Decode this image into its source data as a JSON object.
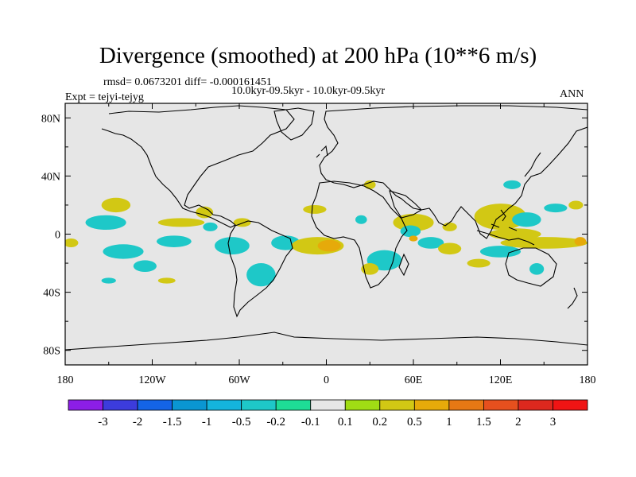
{
  "chart_data": {
    "type": "heatmap",
    "title": "Divergence (smoothed) at 200 hPa (10**6 m/s)",
    "stats": "rmsd= 0.0673201 diff= -0.000161451",
    "period": "10.0kyr-09.5kyr - 10.0kyr-09.5kyr",
    "experiment": "Expt = tejyi-tejyg",
    "season": "ANN",
    "x_ticks": [
      "180",
      "120W",
      "60W",
      "0",
      "60E",
      "120E",
      "180"
    ],
    "y_ticks": [
      "80N",
      "40N",
      "0",
      "40S",
      "80S"
    ],
    "xlim": [
      -180,
      180
    ],
    "ylim": [
      -90,
      90
    ],
    "colorbar": {
      "labels": [
        "-3",
        "-2",
        "-1.5",
        "-1",
        "-0.5",
        "-0.2",
        "-0.1",
        "0.1",
        "0.2",
        "0.5",
        "1",
        "1.5",
        "2",
        "3"
      ],
      "colors": [
        "#8c1ee6",
        "#3c3cdc",
        "#1464e6",
        "#0a96d2",
        "#14b4dc",
        "#1ec8c8",
        "#1edc96",
        "#e6e6e6",
        "#a0dc14",
        "#d2c814",
        "#e6aa0a",
        "#e67814",
        "#e6501e",
        "#dc281e",
        "#f01414"
      ]
    },
    "regions": [
      {
        "lon": -145,
        "lat": 20,
        "rx": 10,
        "ry": 5,
        "level": "0.2"
      },
      {
        "lon": -152,
        "lat": 8,
        "rx": 14,
        "ry": 5,
        "level": "-0.2"
      },
      {
        "lon": -100,
        "lat": 8,
        "rx": 16,
        "ry": 3,
        "level": "0.2"
      },
      {
        "lon": -176,
        "lat": -6,
        "rx": 5,
        "ry": 3,
        "level": "0.2"
      },
      {
        "lon": -140,
        "lat": -12,
        "rx": 14,
        "ry": 5,
        "level": "-0.2"
      },
      {
        "lon": -105,
        "lat": -5,
        "rx": 12,
        "ry": 4,
        "level": "-0.2"
      },
      {
        "lon": -125,
        "lat": -22,
        "rx": 8,
        "ry": 4,
        "level": "-0.2"
      },
      {
        "lon": -150,
        "lat": -32,
        "rx": 5,
        "ry": 2,
        "level": "-0.2"
      },
      {
        "lon": -110,
        "lat": -32,
        "rx": 6,
        "ry": 2,
        "level": "0.2"
      },
      {
        "lon": -84,
        "lat": 15,
        "rx": 6,
        "ry": 4,
        "level": "0.2"
      },
      {
        "lon": -80,
        "lat": 5,
        "rx": 5,
        "ry": 3,
        "level": "-0.2"
      },
      {
        "lon": -65,
        "lat": -8,
        "rx": 12,
        "ry": 6,
        "level": "-0.2"
      },
      {
        "lon": -58,
        "lat": 8,
        "rx": 6,
        "ry": 3,
        "level": "0.2"
      },
      {
        "lon": -45,
        "lat": -28,
        "rx": 10,
        "ry": 8,
        "level": "-0.2"
      },
      {
        "lon": -28,
        "lat": -6,
        "rx": 10,
        "ry": 5,
        "level": "-0.2"
      },
      {
        "lon": -6,
        "lat": -8,
        "rx": 18,
        "ry": 6,
        "level": "0.2"
      },
      {
        "lon": 2,
        "lat": -8,
        "rx": 8,
        "ry": 4,
        "level": "0.5"
      },
      {
        "lon": -8,
        "lat": 17,
        "rx": 8,
        "ry": 3,
        "level": "0.2"
      },
      {
        "lon": 30,
        "lat": 34,
        "rx": 4,
        "ry": 3,
        "level": "0.2"
      },
      {
        "lon": 24,
        "lat": 10,
        "rx": 4,
        "ry": 3,
        "level": "-0.2"
      },
      {
        "lon": 40,
        "lat": -18,
        "rx": 12,
        "ry": 7,
        "level": "-0.2"
      },
      {
        "lon": 30,
        "lat": -24,
        "rx": 6,
        "ry": 4,
        "level": "0.2"
      },
      {
        "lon": 60,
        "lat": 8,
        "rx": 14,
        "ry": 6,
        "level": "0.2"
      },
      {
        "lon": 58,
        "lat": 2,
        "rx": 7,
        "ry": 4,
        "level": "-0.2"
      },
      {
        "lon": 60,
        "lat": -3,
        "rx": 3,
        "ry": 2,
        "level": "0.5"
      },
      {
        "lon": 72,
        "lat": -6,
        "rx": 9,
        "ry": 4,
        "level": "-0.2"
      },
      {
        "lon": 85,
        "lat": -10,
        "rx": 8,
        "ry": 4,
        "level": "0.2"
      },
      {
        "lon": 85,
        "lat": 5,
        "rx": 5,
        "ry": 3,
        "level": "0.2"
      },
      {
        "lon": 120,
        "lat": 12,
        "rx": 18,
        "ry": 9,
        "level": "0.2"
      },
      {
        "lon": 130,
        "lat": 0,
        "rx": 18,
        "ry": 4,
        "level": "0.2"
      },
      {
        "lon": 138,
        "lat": 10,
        "rx": 10,
        "ry": 5,
        "level": "-0.2"
      },
      {
        "lon": 128,
        "lat": 34,
        "rx": 6,
        "ry": 3,
        "level": "-0.2"
      },
      {
        "lon": 150,
        "lat": -6,
        "rx": 30,
        "ry": 4,
        "level": "0.2"
      },
      {
        "lon": 120,
        "lat": -12,
        "rx": 14,
        "ry": 4,
        "level": "-0.2"
      },
      {
        "lon": 158,
        "lat": 18,
        "rx": 8,
        "ry": 3,
        "level": "-0.2"
      },
      {
        "lon": 172,
        "lat": 20,
        "rx": 5,
        "ry": 3,
        "level": "0.2"
      },
      {
        "lon": 175,
        "lat": -5,
        "rx": 4,
        "ry": 3,
        "level": "0.5"
      },
      {
        "lon": 145,
        "lat": -24,
        "rx": 5,
        "ry": 4,
        "level": "-0.2"
      },
      {
        "lon": 105,
        "lat": -20,
        "rx": 8,
        "ry": 3,
        "level": "0.2"
      }
    ]
  }
}
